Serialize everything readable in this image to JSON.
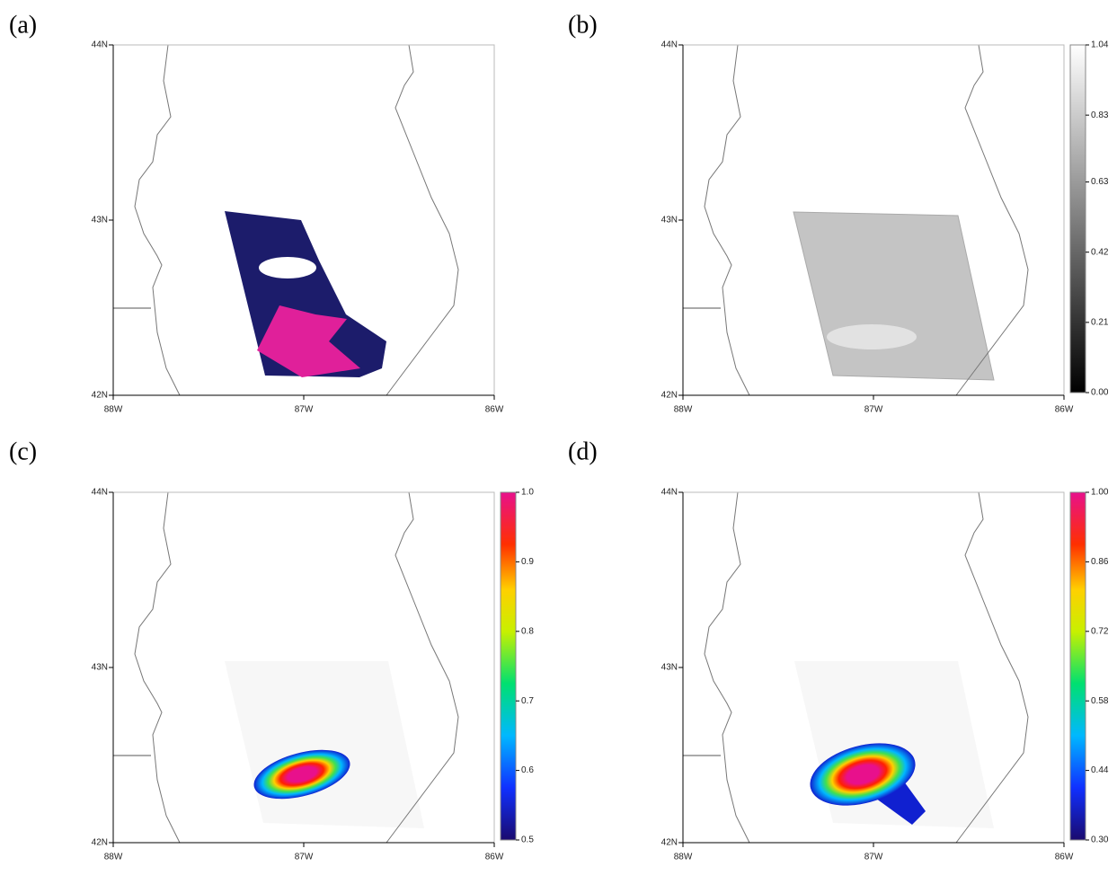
{
  "panels": [
    {
      "label": "(a)",
      "xlim": [
        -88,
        -86
      ],
      "ylim": [
        42,
        44
      ],
      "xticks": [
        {
          "value": -88,
          "label": "88W"
        },
        {
          "value": -87,
          "label": "87W"
        },
        {
          "value": -86,
          "label": "86W"
        }
      ],
      "yticks": [
        {
          "value": 42,
          "label": "42N"
        },
        {
          "value": 43,
          "label": "43N"
        },
        {
          "value": 44,
          "label": "44N"
        }
      ]
    },
    {
      "label": "(b)",
      "xlim": [
        -88,
        -86
      ],
      "ylim": [
        42,
        44
      ],
      "xticks": [
        {
          "value": -88,
          "label": "88W"
        },
        {
          "value": -87,
          "label": "87W"
        },
        {
          "value": -86,
          "label": "86W"
        }
      ],
      "yticks": [
        {
          "value": 42,
          "label": "42N"
        },
        {
          "value": 43,
          "label": "43N"
        },
        {
          "value": 44,
          "label": "44N"
        }
      ],
      "colormap": "gray",
      "clim": [
        0,
        1.04
      ],
      "cticks": [
        {
          "value": 0,
          "label": "0.00"
        },
        0.21,
        0.42,
        0.63,
        0.83,
        1.04
      ]
    },
    {
      "label": "(c)",
      "xlim": [
        -88,
        -86
      ],
      "ylim": [
        42,
        44
      ],
      "xticks": [
        {
          "value": -88,
          "label": "88W"
        },
        {
          "value": -87,
          "label": "87W"
        },
        {
          "value": -86,
          "label": "86W"
        }
      ],
      "yticks": [
        {
          "value": 42,
          "label": "42N"
        },
        {
          "value": 43,
          "label": "43N"
        },
        {
          "value": 44,
          "label": "44N"
        }
      ],
      "colormap": "rainbow",
      "clim": [
        0.5,
        1
      ],
      "cticks": [
        0.5,
        0.6,
        0.7,
        0.8,
        0.9,
        {
          "value": 1,
          "label": "1.0"
        }
      ]
    },
    {
      "label": "(d)",
      "xlim": [
        -88,
        -86
      ],
      "ylim": [
        42,
        44
      ],
      "xticks": [
        {
          "value": -88,
          "label": "88W"
        },
        {
          "value": -87,
          "label": "87W"
        },
        {
          "value": -86,
          "label": "86W"
        }
      ],
      "yticks": [
        {
          "value": 42,
          "label": "42N"
        },
        {
          "value": 43,
          "label": "43N"
        },
        {
          "value": 44,
          "label": "44N"
        }
      ],
      "colormap": "rainbow",
      "clim": [
        0.3,
        1
      ],
      "cticks": [
        {
          "value": 0.3,
          "label": "0.30"
        },
        0.44,
        0.58,
        0.72,
        0.86,
        {
          "value": 1,
          "label": "1.00"
        }
      ]
    }
  ]
}
